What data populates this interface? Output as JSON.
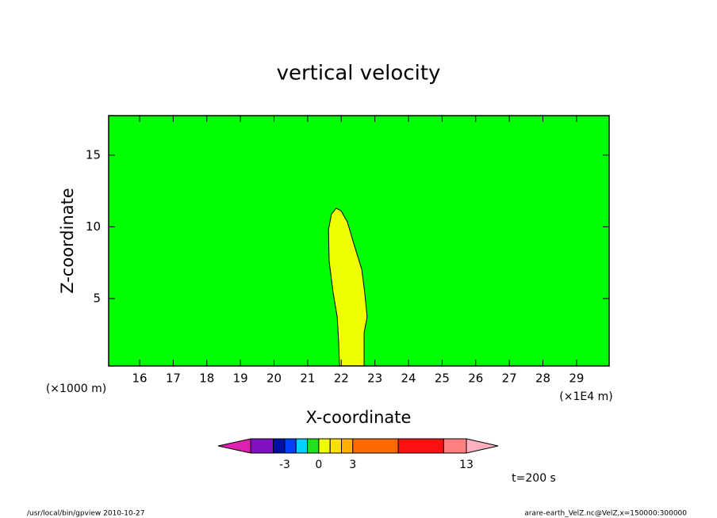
{
  "chart_data": {
    "type": "contour",
    "title": "vertical velocity",
    "x_label": "X-coordinate",
    "y_label": "Z-coordinate",
    "x_unit": "(×1E4 m)",
    "y_unit": "(×1000 m)",
    "time_label": "t=200 s",
    "xlim": [
      15.08,
      29.97
    ],
    "xticks": [
      16,
      17,
      18,
      19,
      20,
      21,
      22,
      23,
      24,
      25,
      26,
      27,
      28,
      29
    ],
    "ylim": [
      0.3,
      17.75
    ],
    "yticks": [
      5,
      10,
      15
    ],
    "background_color": "#00ff00",
    "region": {
      "color": "#f0ff00",
      "x": [
        21.95,
        21.92,
        21.88,
        21.76,
        21.64,
        21.62,
        21.71,
        21.85,
        21.99,
        22.18,
        22.39,
        22.61,
        22.7,
        22.77,
        22.68,
        22.68
      ],
      "y": [
        0.3,
        2.07,
        3.72,
        5.38,
        7.59,
        9.8,
        10.9,
        11.29,
        11.12,
        10.35,
        8.69,
        7.04,
        5.38,
        3.72,
        2.62,
        0.3
      ]
    },
    "colorbar": {
      "levels": [
        -6,
        -4,
        -3,
        -2,
        -1,
        0,
        1,
        2,
        3,
        7,
        11,
        13
      ],
      "colors": [
        "#e020b0",
        "#8010c0",
        "#0010a0",
        "#0040ff",
        "#00d0ff",
        "#20e020",
        "#f0ff00",
        "#ffe000",
        "#ffb000",
        "#ff6a00",
        "#ff1010",
        "#ff8080",
        "#ffb0c0"
      ],
      "ticks": [
        -3,
        0,
        3,
        13
      ]
    },
    "footer_left": "/usr/local/bin/gpview  2010-10-27",
    "footer_right": "arare-earth_VelZ.nc@VelZ,x=150000:300000"
  }
}
